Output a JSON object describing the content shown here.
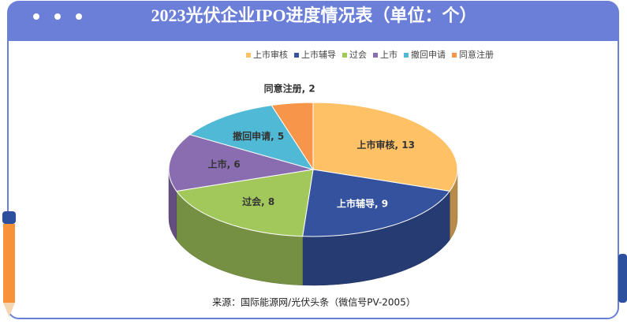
{
  "chart_data": {
    "type": "pie",
    "title": "2023光伏企业IPO进度情况表（单位：个）",
    "categories": [
      "上市审核",
      "上市辅导",
      "过会",
      "上市",
      "撤回申请",
      "同意注册"
    ],
    "values": [
      13,
      9,
      8,
      6,
      5,
      2
    ],
    "value_labels": [
      "上市审核, 13",
      "上市辅导, 9",
      "过会, 8",
      "上市, 6",
      "撤回申请, 5",
      "同意注册, 2"
    ],
    "colors": [
      "#ffc166",
      "#34529e",
      "#a2c85c",
      "#8a6cb0",
      "#50b9d5",
      "#f7964a"
    ],
    "legend": "top",
    "source": "来源：国际能源网/光伏头条（微信号PV-2005）"
  }
}
